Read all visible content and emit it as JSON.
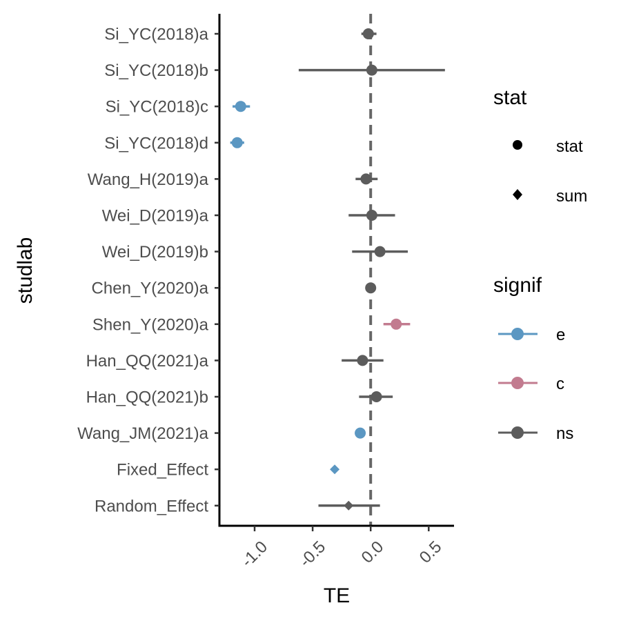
{
  "chart_data": {
    "type": "scatter",
    "subtype": "forest-plot",
    "xlabel": "TE",
    "ylabel": "studlab",
    "xlim": [
      -1.3,
      0.72
    ],
    "xticks": [
      -1.0,
      -0.5,
      0.0,
      0.5
    ],
    "xtick_labels": [
      "-1.0",
      "-0.5",
      "0.0",
      "0.5"
    ],
    "reference_line": 0.0,
    "grid": false,
    "colors": {
      "e": "#5b97c2",
      "c": "#c27b8f",
      "ns": "#5c5c5c"
    },
    "rows": [
      {
        "studlab": "Si_YC(2018)a",
        "te": -0.02,
        "lower": -0.08,
        "upper": 0.05,
        "stat": "stat",
        "signif": "ns"
      },
      {
        "studlab": "Si_YC(2018)b",
        "te": 0.01,
        "lower": -0.62,
        "upper": 0.64,
        "stat": "stat",
        "signif": "ns"
      },
      {
        "studlab": "Si_YC(2018)c",
        "te": -1.12,
        "lower": -1.19,
        "upper": -1.04,
        "stat": "stat",
        "signif": "e"
      },
      {
        "studlab": "Si_YC(2018)d",
        "te": -1.15,
        "lower": -1.21,
        "upper": -1.09,
        "stat": "stat",
        "signif": "e"
      },
      {
        "studlab": "Wang_H(2019)a",
        "te": -0.04,
        "lower": -0.13,
        "upper": 0.06,
        "stat": "stat",
        "signif": "ns"
      },
      {
        "studlab": "Wei_D(2019)a",
        "te": 0.01,
        "lower": -0.19,
        "upper": 0.21,
        "stat": "stat",
        "signif": "ns"
      },
      {
        "studlab": "Wei_D(2019)b",
        "te": 0.08,
        "lower": -0.16,
        "upper": 0.32,
        "stat": "stat",
        "signif": "ns"
      },
      {
        "studlab": "Chen_Y(2020)a",
        "te": 0.0,
        "lower": -0.03,
        "upper": 0.03,
        "stat": "stat",
        "signif": "ns"
      },
      {
        "studlab": "Shen_Y(2020)a",
        "te": 0.22,
        "lower": 0.11,
        "upper": 0.34,
        "stat": "stat",
        "signif": "c"
      },
      {
        "studlab": "Han_QQ(2021)a",
        "te": -0.07,
        "lower": -0.25,
        "upper": 0.11,
        "stat": "stat",
        "signif": "ns"
      },
      {
        "studlab": "Han_QQ(2021)b",
        "te": 0.05,
        "lower": -0.1,
        "upper": 0.19,
        "stat": "stat",
        "signif": "ns"
      },
      {
        "studlab": "Wang_JM(2021)a",
        "te": -0.09,
        "lower": -0.13,
        "upper": -0.05,
        "stat": "stat",
        "signif": "e"
      },
      {
        "studlab": "Fixed_Effect",
        "te": -0.31,
        "lower": -0.32,
        "upper": -0.3,
        "stat": "sum",
        "signif": "e"
      },
      {
        "studlab": "Random_Effect",
        "te": -0.19,
        "lower": -0.45,
        "upper": 0.08,
        "stat": "sum",
        "signif": "ns"
      }
    ],
    "legend": {
      "placement": "right",
      "stat": {
        "title": "stat",
        "items": [
          {
            "label": "stat",
            "shape": "circle"
          },
          {
            "label": "sum",
            "shape": "diamond"
          }
        ]
      },
      "signif": {
        "title": "signif",
        "items": [
          {
            "label": "e",
            "key": "e"
          },
          {
            "label": "c",
            "key": "c"
          },
          {
            "label": "ns",
            "key": "ns"
          }
        ]
      }
    }
  }
}
